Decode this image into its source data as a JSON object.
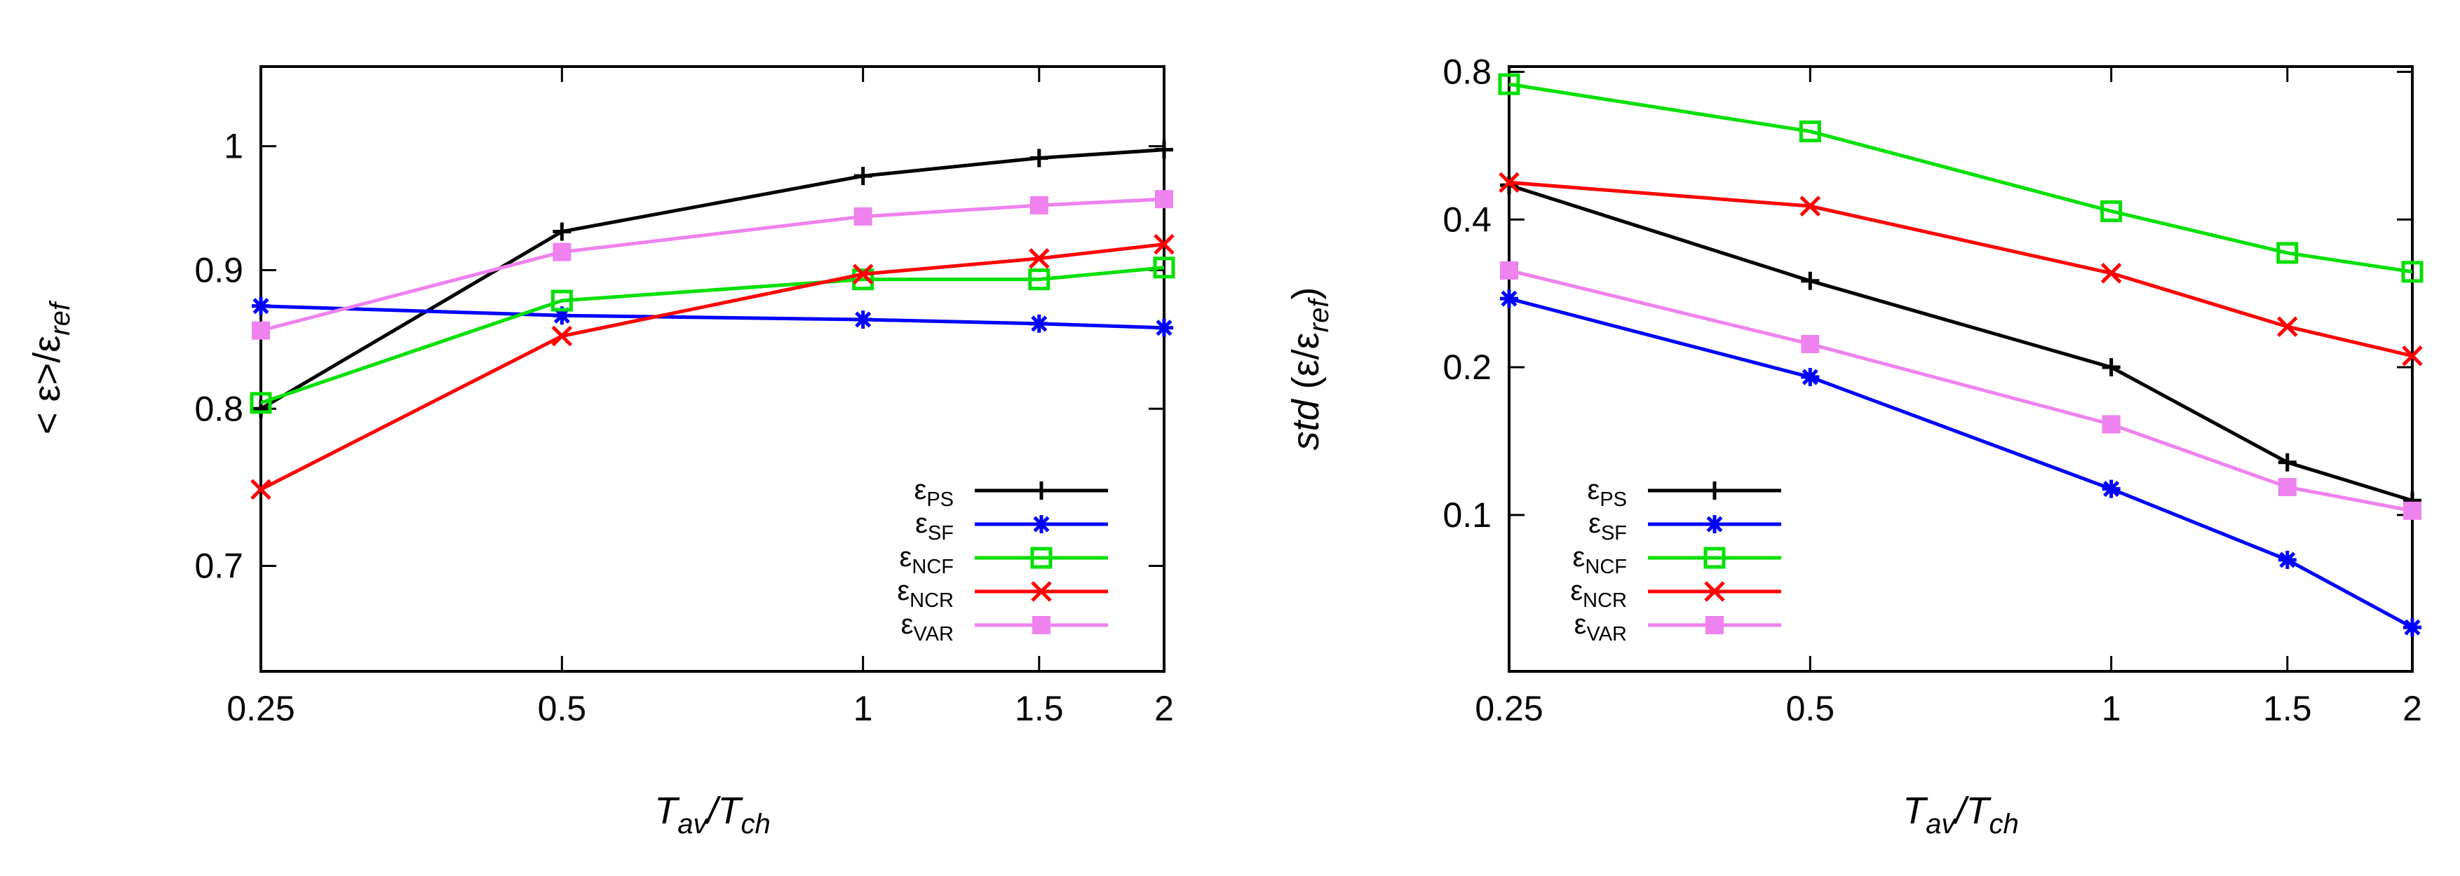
{
  "chart_data": [
    {
      "type": "line",
      "xscale": "log",
      "yscale": "log",
      "x": [
        0.25,
        0.5,
        1,
        1.5,
        2
      ],
      "xticks": [
        "0.25",
        "0.5",
        "1",
        "1.5",
        "2"
      ],
      "yticks": [
        "0.7",
        "0.8",
        "0.9",
        "1"
      ],
      "ylim": [
        0.64,
        1.07
      ],
      "xlim": [
        0.25,
        2
      ],
      "xlabel": {
        "main": "T",
        "sub1": "av",
        "sep": "/T",
        "sub2": "ch"
      },
      "ylabel": {
        "prefix": "< ε>/ε",
        "sub": "ref"
      },
      "legend_position": "bottom-right",
      "series": [
        {
          "name": "ε",
          "sub": "PS",
          "color": "#000000",
          "marker": "plus",
          "values": [
            0.8,
            0.93,
            0.975,
            0.99,
            0.997
          ]
        },
        {
          "name": "ε",
          "sub": "SF",
          "color": "#0000ff",
          "marker": "asterisk",
          "values": [
            0.873,
            0.866,
            0.863,
            0.86,
            0.857
          ]
        },
        {
          "name": "ε",
          "sub": "NCF",
          "color": "#00e000",
          "marker": "open-square",
          "values": [
            0.804,
            0.877,
            0.893,
            0.893,
            0.902
          ]
        },
        {
          "name": "ε",
          "sub": "NCR",
          "color": "#ff0000",
          "marker": "cross",
          "values": [
            0.747,
            0.851,
            0.897,
            0.909,
            0.92
          ]
        },
        {
          "name": "ε",
          "sub": "VAR",
          "color": "#ee82ee",
          "marker": "filled-square",
          "values": [
            0.855,
            0.914,
            0.942,
            0.951,
            0.956
          ]
        }
      ]
    },
    {
      "type": "line",
      "xscale": "log",
      "yscale": "log",
      "x": [
        0.25,
        0.5,
        1,
        1.5,
        2
      ],
      "xticks": [
        "0.25",
        "0.5",
        "1",
        "1.5",
        "2"
      ],
      "yticks": [
        "0.1",
        "0.2",
        "0.4",
        "0.8"
      ],
      "ylim": [
        0.048,
        0.82
      ],
      "xlim": [
        0.25,
        2
      ],
      "xlabel": {
        "main": "T",
        "sub1": "av",
        "sep": "/T",
        "sub2": "ch"
      },
      "ylabel": {
        "prefix": "std (ε/ε",
        "sub": "ref",
        "suffix": ")"
      },
      "legend_position": "bottom-left",
      "series": [
        {
          "name": "ε",
          "sub": "PS",
          "color": "#000000",
          "marker": "plus",
          "values": [
            0.47,
            0.3,
            0.2,
            0.128,
            0.107
          ]
        },
        {
          "name": "ε",
          "sub": "SF",
          "color": "#0000ff",
          "marker": "asterisk",
          "values": [
            0.276,
            0.191,
            0.113,
            0.081,
            0.059
          ]
        },
        {
          "name": "ε",
          "sub": "NCF",
          "color": "#00e000",
          "marker": "open-square",
          "values": [
            0.755,
            0.605,
            0.416,
            0.342,
            0.313
          ]
        },
        {
          "name": "ε",
          "sub": "NCR",
          "color": "#ff0000",
          "marker": "cross",
          "values": [
            0.476,
            0.426,
            0.311,
            0.242,
            0.211
          ]
        },
        {
          "name": "ε",
          "sub": "VAR",
          "color": "#ee82ee",
          "marker": "filled-square",
          "values": [
            0.315,
            0.223,
            0.153,
            0.114,
            0.102
          ]
        }
      ]
    }
  ]
}
